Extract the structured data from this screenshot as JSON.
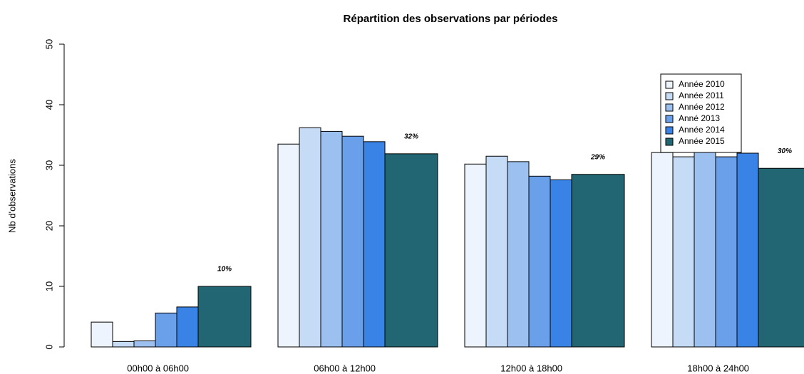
{
  "chart_data": {
    "type": "bar",
    "title": "Répartition des observations par périodes",
    "y_label": "Nb d'observations",
    "categories": [
      "00h00 à 06h00",
      "06h00 à 12h00",
      "12h00 à 18h00",
      "18h00 à 24h00"
    ],
    "series": [
      {
        "name": "Année 2010",
        "color": "#eef4fd",
        "values": [
          4.1,
          33.5,
          30.2,
          32.1
        ]
      },
      {
        "name": "Année 2011",
        "color": "#c6dbf6",
        "values": [
          0.9,
          36.2,
          31.5,
          31.4
        ]
      },
      {
        "name": "Année 2012",
        "color": "#9cc0f0",
        "values": [
          1.0,
          35.6,
          30.6,
          32.2
        ]
      },
      {
        "name": "Anné 2013",
        "color": "#6aa0ea",
        "values": [
          5.6,
          34.8,
          28.2,
          31.4
        ]
      },
      {
        "name": "Année 2014",
        "color": "#3a83e6",
        "values": [
          6.6,
          33.9,
          27.6,
          32.0
        ]
      },
      {
        "name": "Année 2015",
        "color": "#226673",
        "values": [
          10,
          31.9,
          28.5,
          29.5
        ]
      }
    ],
    "annotations": [
      "10%",
      "32%",
      "29%",
      "30%"
    ],
    "ylim": [
      0,
      50
    ],
    "yticks": [
      0,
      10,
      20,
      30,
      40,
      50
    ],
    "grid": false,
    "legend": "top-right"
  }
}
